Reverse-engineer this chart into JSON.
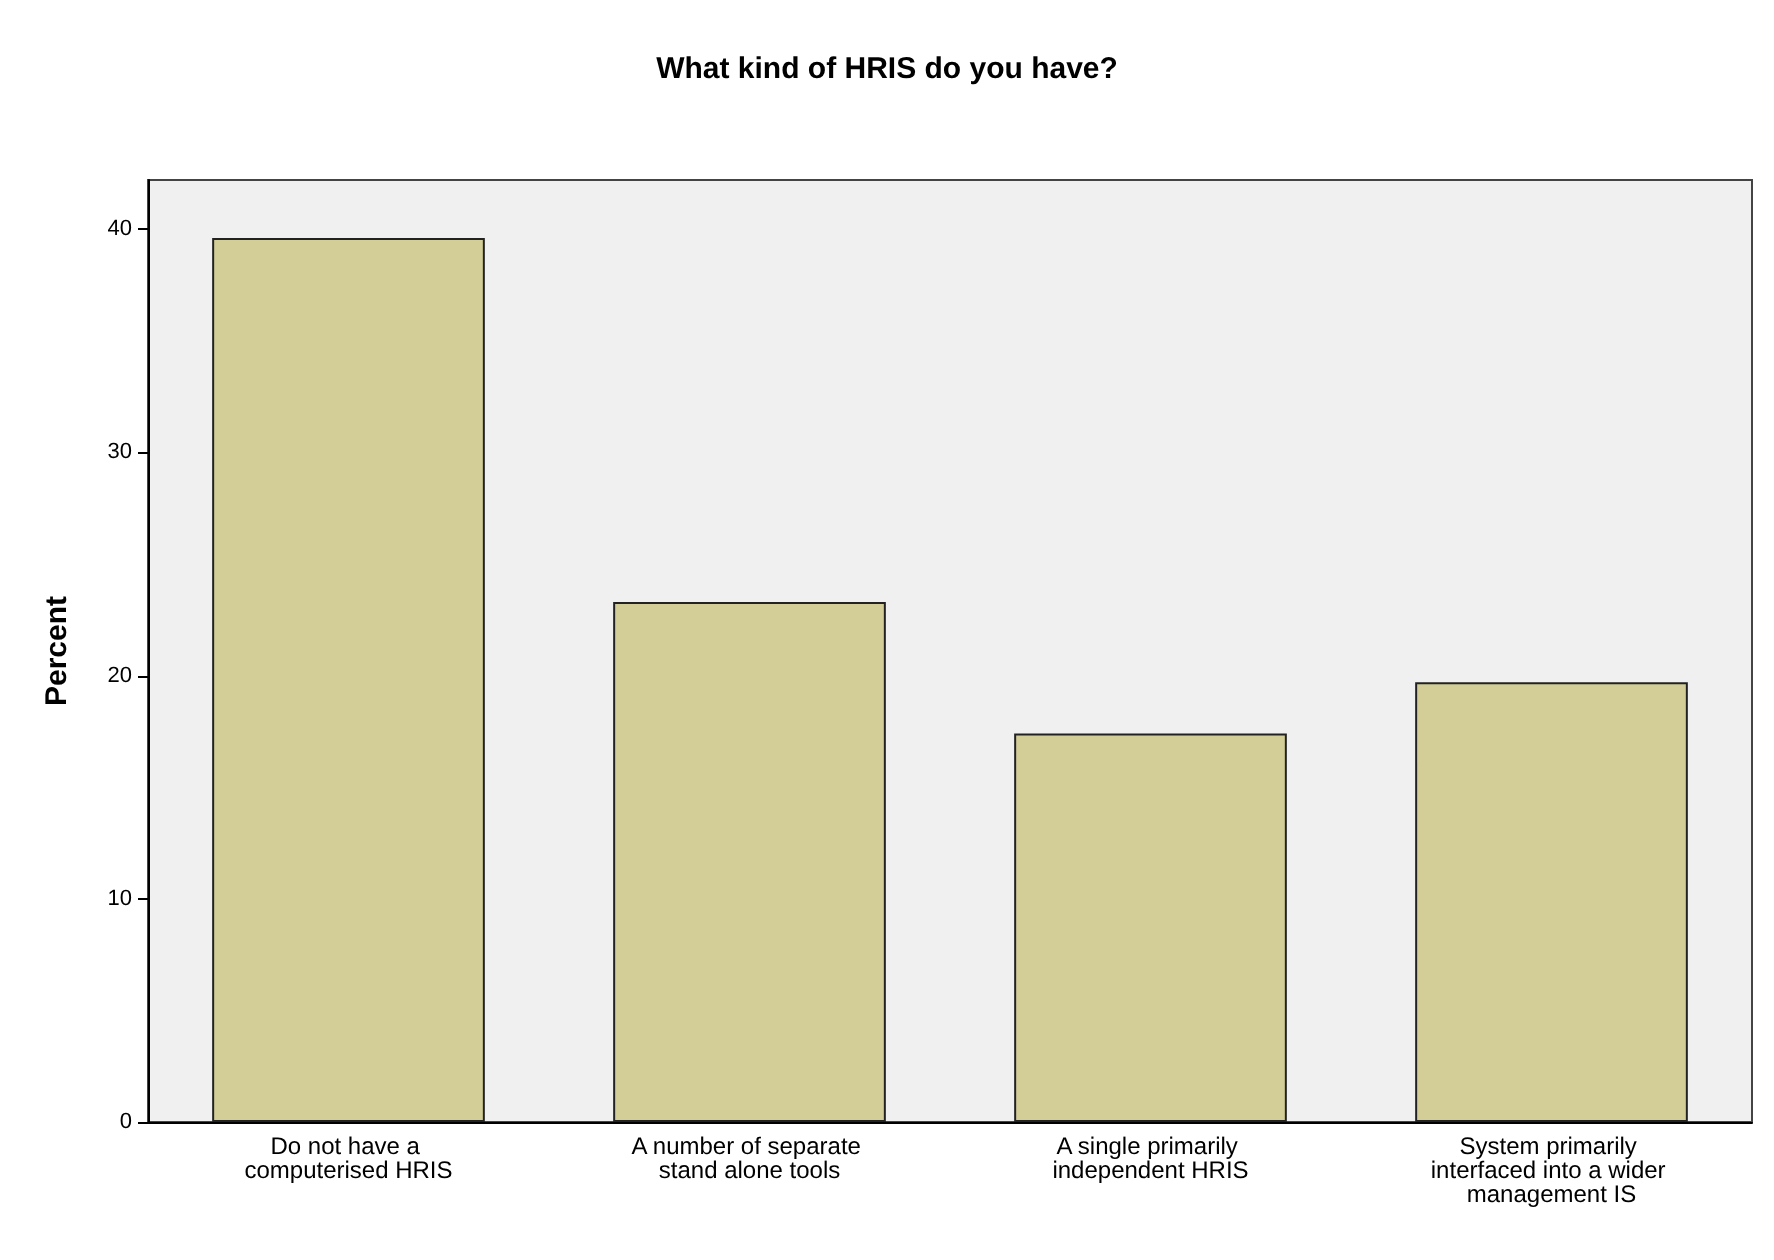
{
  "chart_data": {
    "type": "bar",
    "title": "What kind of HRIS do you have?",
    "ylabel": "Percent",
    "categories": [
      "Do not have a computerised HRIS",
      "A number of separate stand alone tools",
      "A single primarily independent HRIS",
      "System primarily interfaced into a wider management IS"
    ],
    "values": [
      39.6,
      23.3,
      17.4,
      19.7
    ],
    "color": "#d3ce97",
    "ylim": [
      0,
      42.2
    ],
    "yticks": [
      0,
      10,
      20,
      30,
      40
    ],
    "grid": false
  }
}
